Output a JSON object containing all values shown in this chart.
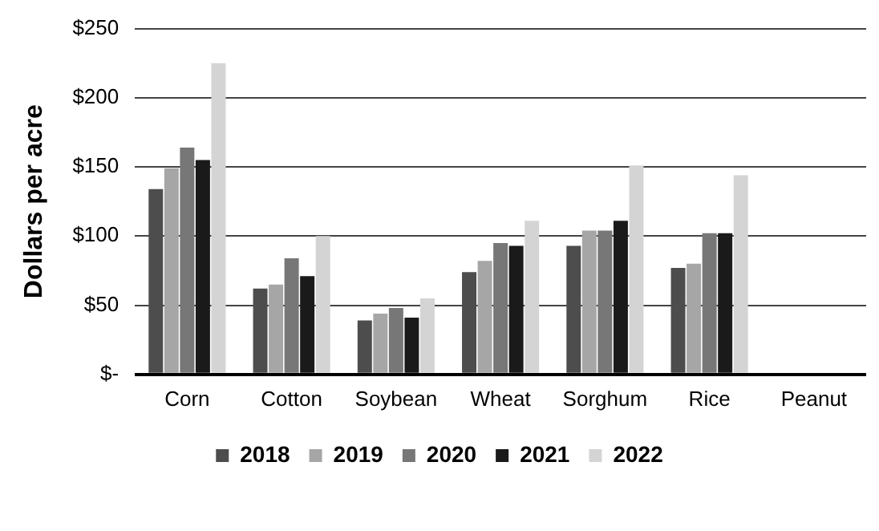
{
  "chart_data": {
    "type": "bar",
    "ylabel": "Dollars per acre",
    "categories": [
      "Corn",
      "Cotton",
      "Soybean",
      "Wheat",
      "Sorghum",
      "Rice",
      "Peanut"
    ],
    "series": [
      {
        "name": "2018",
        "color": "#4d4d4d",
        "values": [
          134,
          62,
          39,
          74,
          93,
          77,
          null
        ]
      },
      {
        "name": "2019",
        "color": "#a6a6a6",
        "values": [
          149,
          65,
          44,
          82,
          104,
          80,
          null
        ]
      },
      {
        "name": "2020",
        "color": "#777777",
        "values": [
          164,
          84,
          48,
          95,
          104,
          102,
          null
        ]
      },
      {
        "name": "2021",
        "color": "#1a1a1a",
        "values": [
          155,
          71,
          41,
          93,
          111,
          102,
          null
        ]
      },
      {
        "name": "2022",
        "color": "#d4d4d4",
        "values": [
          225,
          100,
          55,
          111,
          151,
          144,
          null
        ]
      }
    ],
    "ylim": [
      0,
      250
    ],
    "yticks": [
      {
        "value": 0,
        "label": "$-"
      },
      {
        "value": 50,
        "label": "$50"
      },
      {
        "value": 100,
        "label": "$100"
      },
      {
        "value": 150,
        "label": "$150"
      },
      {
        "value": 200,
        "label": "$200"
      },
      {
        "value": 250,
        "label": "$250"
      }
    ],
    "grid": "y",
    "legend": "bottom"
  }
}
